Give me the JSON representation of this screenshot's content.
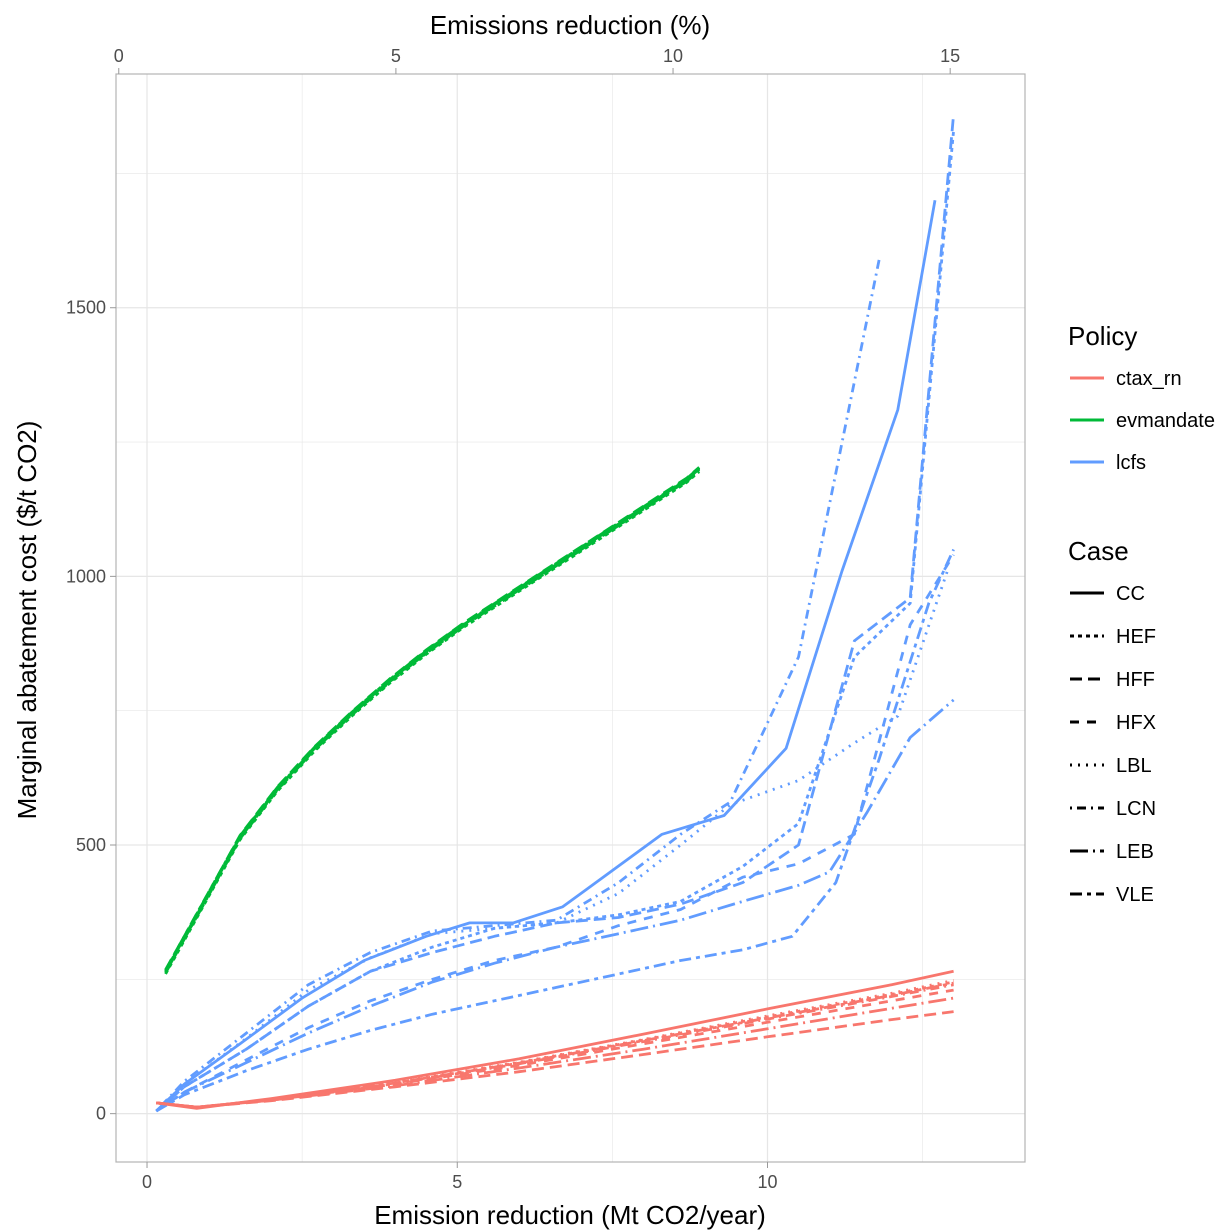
{
  "chart_data": {
    "type": "line",
    "xlabel": "Emission reduction (Mt CO2/year)",
    "ylabel": "Marginal abatement cost ($/t CO2)",
    "x2label": "Emissions reduction (%)",
    "xlim": [
      -0.5,
      14.15
    ],
    "ylim": [
      -90,
      1935
    ],
    "xticks": [
      0,
      5,
      10
    ],
    "yticks": [
      0,
      500,
      1000,
      1500
    ],
    "x2lim": [
      -0.05,
      16.35
    ],
    "x2ticks": [
      0,
      5,
      10,
      15
    ],
    "grid": true,
    "legend_placement": "right",
    "colors": {
      "ctax_rn": "#F8766D",
      "evmandate": "#00BA38",
      "lcfs": "#619CFF"
    },
    "policy_legend": {
      "title": "Policy",
      "items": [
        "ctax_rn",
        "evmandate",
        "lcfs"
      ]
    },
    "case_legend": {
      "title": "Case",
      "items": [
        "CC",
        "HEF",
        "HFF",
        "HFX",
        "LBL",
        "LCN",
        "LEB",
        "VLE"
      ]
    },
    "series": [
      {
        "policy": "lcfs",
        "case": "CC",
        "x": [
          0.15,
          0.6,
          1.5,
          2.5,
          3.5,
          4.5,
          5.2,
          5.9,
          6.7,
          8.3,
          9.3,
          10.3,
          11.2,
          12.1,
          12.7
        ],
        "y": [
          5,
          55,
          130,
          215,
          285,
          330,
          355,
          355,
          385,
          520,
          555,
          680,
          1010,
          1310,
          1700
        ]
      },
      {
        "policy": "lcfs",
        "case": "HEF",
        "x": [
          0.15,
          0.6,
          1.6,
          2.6,
          3.6,
          4.6,
          5.6,
          6.6,
          7.6,
          8.6,
          9.6,
          10.5,
          11.4,
          12.3,
          13.0
        ],
        "y": [
          5,
          50,
          120,
          200,
          265,
          310,
          345,
          355,
          370,
          395,
          460,
          540,
          850,
          950,
          1830
        ]
      },
      {
        "policy": "lcfs",
        "case": "HFF",
        "x": [
          0.15,
          0.6,
          1.6,
          2.6,
          3.6,
          4.6,
          5.6,
          6.6,
          7.6,
          8.6,
          9.6,
          10.5,
          11.4,
          12.3,
          13.0
        ],
        "y": [
          5,
          50,
          120,
          200,
          265,
          300,
          330,
          355,
          365,
          390,
          430,
          500,
          880,
          960,
          1860
        ]
      },
      {
        "policy": "lcfs",
        "case": "HFX",
        "x": [
          0.15,
          0.6,
          1.6,
          2.6,
          3.6,
          4.6,
          5.6,
          6.6,
          7.6,
          8.6,
          9.6,
          10.5,
          11.4,
          12.3,
          13.0
        ],
        "y": [
          5,
          40,
          100,
          160,
          210,
          250,
          285,
          310,
          350,
          380,
          440,
          465,
          520,
          910,
          1040
        ]
      },
      {
        "policy": "lcfs",
        "case": "LBL",
        "x": [
          0.15,
          0.6,
          1.6,
          2.6,
          3.6,
          4.6,
          5.6,
          6.6,
          7.6,
          8.6,
          9.4,
          10.5,
          11.4,
          12.1,
          12.9
        ],
        "y": [
          5,
          55,
          140,
          230,
          290,
          335,
          345,
          355,
          410,
          500,
          575,
          620,
          690,
          740,
          1010
        ]
      },
      {
        "policy": "lcfs",
        "case": "LCN",
        "x": [
          0.15,
          0.6,
          1.6,
          2.6,
          3.6,
          4.6,
          5.6,
          6.6,
          7.6,
          8.6,
          9.4,
          10.5,
          11.8
        ],
        "y": [
          5,
          60,
          150,
          240,
          300,
          340,
          350,
          360,
          430,
          520,
          580,
          850,
          1590
        ]
      },
      {
        "policy": "lcfs",
        "case": "LEB",
        "x": [
          0.15,
          0.6,
          1.6,
          2.6,
          3.6,
          4.6,
          5.6,
          6.6,
          7.6,
          8.6,
          9.6,
          10.5,
          11.0,
          11.6,
          12.3,
          13.0
        ],
        "y": [
          5,
          40,
          95,
          150,
          200,
          245,
          280,
          310,
          335,
          360,
          395,
          425,
          450,
          560,
          700,
          770
        ]
      },
      {
        "policy": "lcfs",
        "case": "VLE",
        "x": [
          0.15,
          0.6,
          1.6,
          2.6,
          3.6,
          4.6,
          5.6,
          6.6,
          7.6,
          8.6,
          9.6,
          10.4,
          11.1,
          11.8,
          12.6,
          13.0
        ],
        "y": [
          5,
          35,
          80,
          120,
          155,
          185,
          210,
          235,
          260,
          285,
          305,
          330,
          430,
          660,
          950,
          1050
        ]
      },
      {
        "policy": "evmandate",
        "case": "CC",
        "x": [
          0.3,
          0.9,
          1.5,
          2.1,
          2.7,
          3.3,
          3.9,
          4.5,
          5.1,
          5.7,
          6.3,
          6.9,
          7.5,
          8.1,
          8.7,
          8.9
        ],
        "y": [
          265,
          390,
          515,
          605,
          680,
          745,
          805,
          860,
          910,
          955,
          1000,
          1045,
          1090,
          1135,
          1180,
          1200
        ]
      },
      {
        "policy": "evmandate",
        "case": "HEF",
        "x": [
          0.3,
          0.9,
          1.5,
          2.1,
          2.7,
          3.3,
          3.9,
          4.5,
          5.1,
          5.7,
          6.3,
          6.9,
          7.5,
          8.1,
          8.7,
          8.9
        ],
        "y": [
          260,
          385,
          510,
          600,
          675,
          740,
          800,
          855,
          905,
          950,
          995,
          1040,
          1085,
          1130,
          1175,
          1195
        ]
      },
      {
        "policy": "evmandate",
        "case": "HFF",
        "x": [
          0.3,
          0.9,
          1.5,
          2.1,
          2.7,
          3.3,
          3.9,
          4.5,
          5.1,
          5.7,
          6.3,
          6.9,
          7.5,
          8.1,
          8.7,
          8.9
        ],
        "y": [
          268,
          392,
          518,
          608,
          683,
          748,
          808,
          863,
          913,
          958,
          1003,
          1048,
          1093,
          1138,
          1183,
          1203
        ]
      },
      {
        "policy": "evmandate",
        "case": "HFX",
        "x": [
          0.3,
          0.9,
          1.5,
          2.1,
          2.7,
          3.3,
          3.9,
          4.5,
          5.1,
          5.7,
          6.3,
          6.9,
          7.5,
          8.1,
          8.7,
          8.9
        ],
        "y": [
          262,
          388,
          512,
          602,
          678,
          742,
          802,
          858,
          908,
          952,
          998,
          1042,
          1088,
          1132,
          1178,
          1198
        ]
      },
      {
        "policy": "evmandate",
        "case": "LBL",
        "x": [
          0.3,
          0.9,
          1.5,
          2.1,
          2.7,
          3.3,
          3.9,
          4.5,
          5.1,
          5.7,
          6.3,
          6.9,
          7.5,
          8.1,
          8.7,
          8.9
        ],
        "y": [
          264,
          389,
          514,
          604,
          679,
          744,
          804,
          859,
          909,
          954,
          999,
          1044,
          1089,
          1134,
          1179,
          1199
        ]
      },
      {
        "policy": "evmandate",
        "case": "LCN",
        "x": [
          0.3,
          0.9,
          1.5,
          2.1,
          2.7,
          3.3,
          3.9,
          4.5,
          5.1,
          5.7,
          6.3,
          6.9,
          7.5,
          8.1,
          8.7,
          8.9
        ],
        "y": [
          266,
          391,
          516,
          606,
          681,
          746,
          806,
          861,
          911,
          956,
          1001,
          1046,
          1091,
          1136,
          1181,
          1201
        ]
      },
      {
        "policy": "evmandate",
        "case": "LEB",
        "x": [
          0.3,
          0.9,
          1.5,
          2.1,
          2.7,
          3.3,
          3.9,
          4.5,
          5.1,
          5.7,
          6.3,
          6.9,
          7.5,
          8.1,
          8.7,
          8.9
        ],
        "y": [
          263,
          387,
          513,
          603,
          677,
          743,
          803,
          857,
          907,
          953,
          997,
          1043,
          1087,
          1133,
          1177,
          1197
        ]
      },
      {
        "policy": "evmandate",
        "case": "VLE",
        "x": [
          0.3,
          0.9,
          1.5,
          2.1,
          2.7,
          3.3,
          3.9,
          4.5,
          5.1,
          5.7,
          6.3,
          6.9,
          7.5,
          8.1,
          8.7,
          8.9
        ],
        "y": [
          267,
          393,
          517,
          607,
          682,
          747,
          807,
          862,
          912,
          957,
          1002,
          1047,
          1092,
          1137,
          1182,
          1202
        ]
      },
      {
        "policy": "ctax_rn",
        "case": "CC",
        "x": [
          0.15,
          0.8,
          2,
          4,
          6,
          8,
          10,
          12,
          13.0
        ],
        "y": [
          20,
          10,
          28,
          62,
          102,
          148,
          195,
          240,
          265
        ]
      },
      {
        "policy": "ctax_rn",
        "case": "HEF",
        "x": [
          0.15,
          0.8,
          2,
          4,
          6,
          8,
          10,
          12,
          13.0
        ],
        "y": [
          20,
          12,
          26,
          57,
          95,
          137,
          180,
          222,
          245
        ]
      },
      {
        "policy": "ctax_rn",
        "case": "HFF",
        "x": [
          0.15,
          0.8,
          2,
          4,
          6,
          8,
          10,
          12,
          13.0
        ],
        "y": [
          20,
          12,
          24,
          50,
          78,
          110,
          143,
          175,
          190
        ]
      },
      {
        "policy": "ctax_rn",
        "case": "HFX",
        "x": [
          0.15,
          0.8,
          2,
          4,
          6,
          8,
          10,
          12,
          13.0
        ],
        "y": [
          20,
          12,
          25,
          55,
          90,
          130,
          170,
          210,
          230
        ]
      },
      {
        "policy": "ctax_rn",
        "case": "LBL",
        "x": [
          0.15,
          0.8,
          2,
          4,
          6,
          8,
          10,
          12,
          13.0
        ],
        "y": [
          20,
          12,
          26,
          58,
          96,
          138,
          182,
          224,
          248
        ]
      },
      {
        "policy": "ctax_rn",
        "case": "LCN",
        "x": [
          0.15,
          0.8,
          2,
          4,
          6,
          8,
          10,
          12,
          13.0
        ],
        "y": [
          20,
          12,
          26,
          56,
          93,
          134,
          176,
          218,
          240
        ]
      },
      {
        "policy": "ctax_rn",
        "case": "LEB",
        "x": [
          0.15,
          0.8,
          2,
          4,
          6,
          8,
          10,
          12,
          13.0
        ],
        "y": [
          20,
          12,
          25,
          52,
          85,
          120,
          158,
          196,
          215
        ]
      },
      {
        "policy": "ctax_rn",
        "case": "VLE",
        "x": [
          0.15,
          0.8,
          2,
          4,
          6,
          8,
          10,
          12,
          13.0
        ],
        "y": [
          20,
          12,
          26,
          57,
          94,
          136,
          178,
          220,
          243
        ]
      }
    ]
  }
}
